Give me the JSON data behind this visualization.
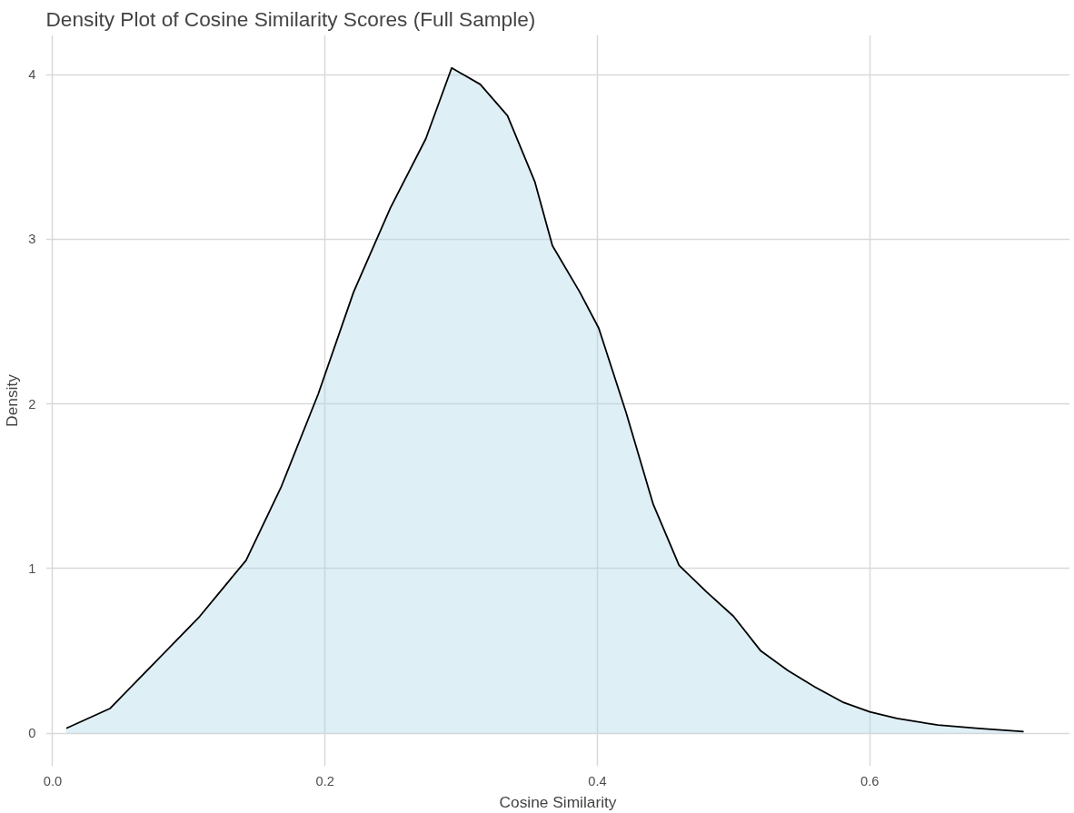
{
  "chart_data": {
    "type": "area",
    "title": "Density Plot of Cosine Similarity Scores (Full Sample)",
    "xlabel": "Cosine Similarity",
    "ylabel": "Density",
    "x": [
      0.01,
      0.042,
      0.075,
      0.108,
      0.142,
      0.168,
      0.195,
      0.221,
      0.248,
      0.274,
      0.293,
      0.314,
      0.334,
      0.354,
      0.367,
      0.387,
      0.401,
      0.421,
      0.441,
      0.46,
      0.48,
      0.5,
      0.52,
      0.54,
      0.56,
      0.58,
      0.6,
      0.62,
      0.65,
      0.68,
      0.713
    ],
    "series": [
      {
        "color": "#add8e6",
        "values": [
          0.03,
          0.15,
          0.43,
          0.71,
          1.05,
          1.5,
          2.06,
          2.68,
          3.19,
          3.61,
          4.04,
          3.94,
          3.75,
          3.35,
          2.96,
          2.68,
          2.46,
          1.95,
          1.39,
          1.02,
          0.86,
          0.71,
          0.5,
          0.38,
          0.28,
          0.19,
          0.13,
          0.09,
          0.05,
          0.03,
          0.01
        ]
      }
    ],
    "xlim": [
      -0.005,
      0.747
    ],
    "ylim": [
      -0.2,
      4.24
    ],
    "xticks": [
      {
        "value": 0,
        "label": "0.0"
      },
      0.2,
      0.4,
      0.6
    ],
    "yticks": [
      0,
      1,
      2,
      3,
      4
    ],
    "grid": true
  }
}
